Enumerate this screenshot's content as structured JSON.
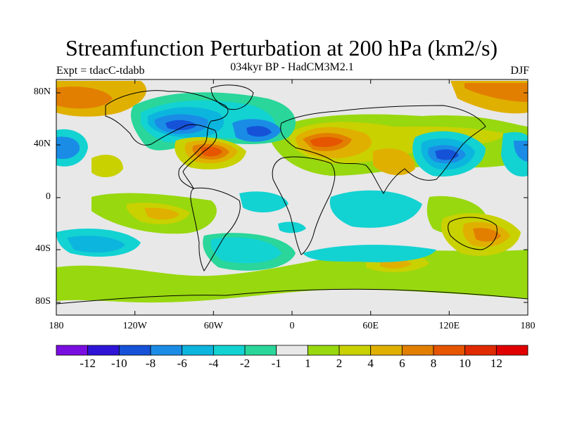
{
  "title": "Streamfunction Perturbation at 200 hPa (km2/s)",
  "subtitle": "034kyr BP - HadCM3M2.1",
  "experiment": "Expt = tdacC-tdabb",
  "season": "DJF",
  "lat_labels": [
    "80N",
    "40N",
    "0",
    "40S",
    "80S"
  ],
  "lon_labels": [
    "180",
    "120W",
    "60W",
    "0",
    "60E",
    "120E",
    "180"
  ],
  "colorbar": {
    "labels": [
      "-12",
      "-10",
      "-8",
      "-6",
      "-4",
      "-2",
      "-1",
      "1",
      "2",
      "4",
      "6",
      "8",
      "10",
      "12"
    ],
    "colors": [
      "#7a0ee0",
      "#2f14d8",
      "#1552d8",
      "#1a8ce6",
      "#0cb5de",
      "#13d2d2",
      "#2ad69a",
      "#e8e8e8",
      "#98d80f",
      "#c9d100",
      "#e0b000",
      "#e27f00",
      "#e65500",
      "#e02a00",
      "#e00000"
    ]
  }
}
